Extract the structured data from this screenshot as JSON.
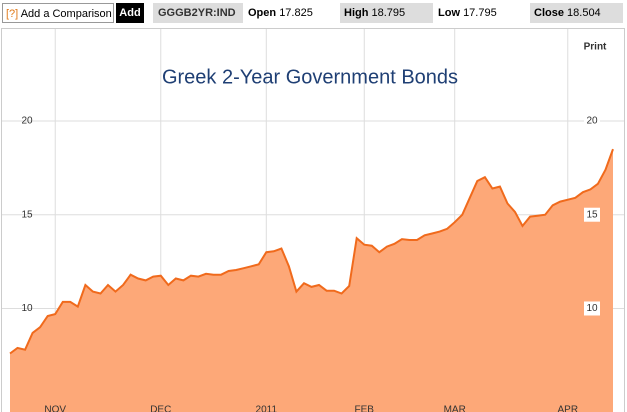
{
  "toolbar": {
    "help_icon": "[?]",
    "compare_label": "Add a Comparison",
    "add_button": "Add",
    "ticker": "GGGB2YR:IND",
    "open_label": "Open",
    "open_value": 17.825,
    "high_label": "High",
    "high_value": 18.795,
    "low_label": "Low",
    "low_value": 17.795,
    "close_label": "Close",
    "close_value": 18.504
  },
  "print_button": "Print",
  "chart_data": {
    "type": "area",
    "title": "Greek 2-Year Government Bonds",
    "categories": [
      null,
      null,
      null,
      null,
      null,
      null,
      "NOV",
      null,
      null,
      null,
      null,
      null,
      null,
      null,
      null,
      null,
      null,
      null,
      null,
      null,
      "DEC",
      null,
      null,
      null,
      null,
      null,
      null,
      null,
      null,
      null,
      null,
      null,
      null,
      null,
      "2011",
      null,
      null,
      null,
      null,
      null,
      null,
      null,
      null,
      null,
      null,
      null,
      null,
      "FEB",
      null,
      null,
      null,
      null,
      null,
      null,
      null,
      null,
      null,
      null,
      null,
      "MAR",
      null,
      null,
      null,
      null,
      null,
      null,
      null,
      null,
      null,
      null,
      null,
      null,
      null,
      null,
      "APR",
      null,
      null,
      null,
      null,
      null,
      null
    ],
    "values": [
      7.6,
      7.9,
      7.8,
      8.7,
      9.0,
      9.6,
      9.7,
      10.35,
      10.35,
      10.1,
      11.25,
      10.9,
      10.8,
      11.25,
      10.9,
      11.25,
      11.8,
      11.6,
      11.5,
      11.7,
      11.75,
      11.25,
      11.6,
      11.5,
      11.75,
      11.7,
      11.85,
      11.8,
      11.8,
      12.0,
      12.05,
      12.15,
      12.25,
      12.35,
      13.0,
      13.05,
      13.2,
      12.25,
      10.9,
      11.35,
      11.15,
      11.25,
      10.95,
      10.95,
      10.8,
      11.2,
      13.75,
      13.4,
      13.35,
      13.0,
      13.3,
      13.45,
      13.7,
      13.65,
      13.65,
      13.9,
      14.0,
      14.1,
      14.25,
      14.6,
      15.0,
      15.9,
      16.8,
      17.0,
      16.4,
      16.5,
      15.6,
      15.15,
      14.4,
      14.9,
      14.95,
      15.0,
      15.5,
      15.7,
      15.8,
      15.9,
      16.2,
      16.35,
      16.65,
      17.4,
      18.5
    ],
    "line_color": "#f06a1c",
    "fill_color": "#fda878",
    "ylim": [
      4.48,
      24.85
    ],
    "yticks": [
      10,
      15,
      20
    ],
    "grid": true
  }
}
